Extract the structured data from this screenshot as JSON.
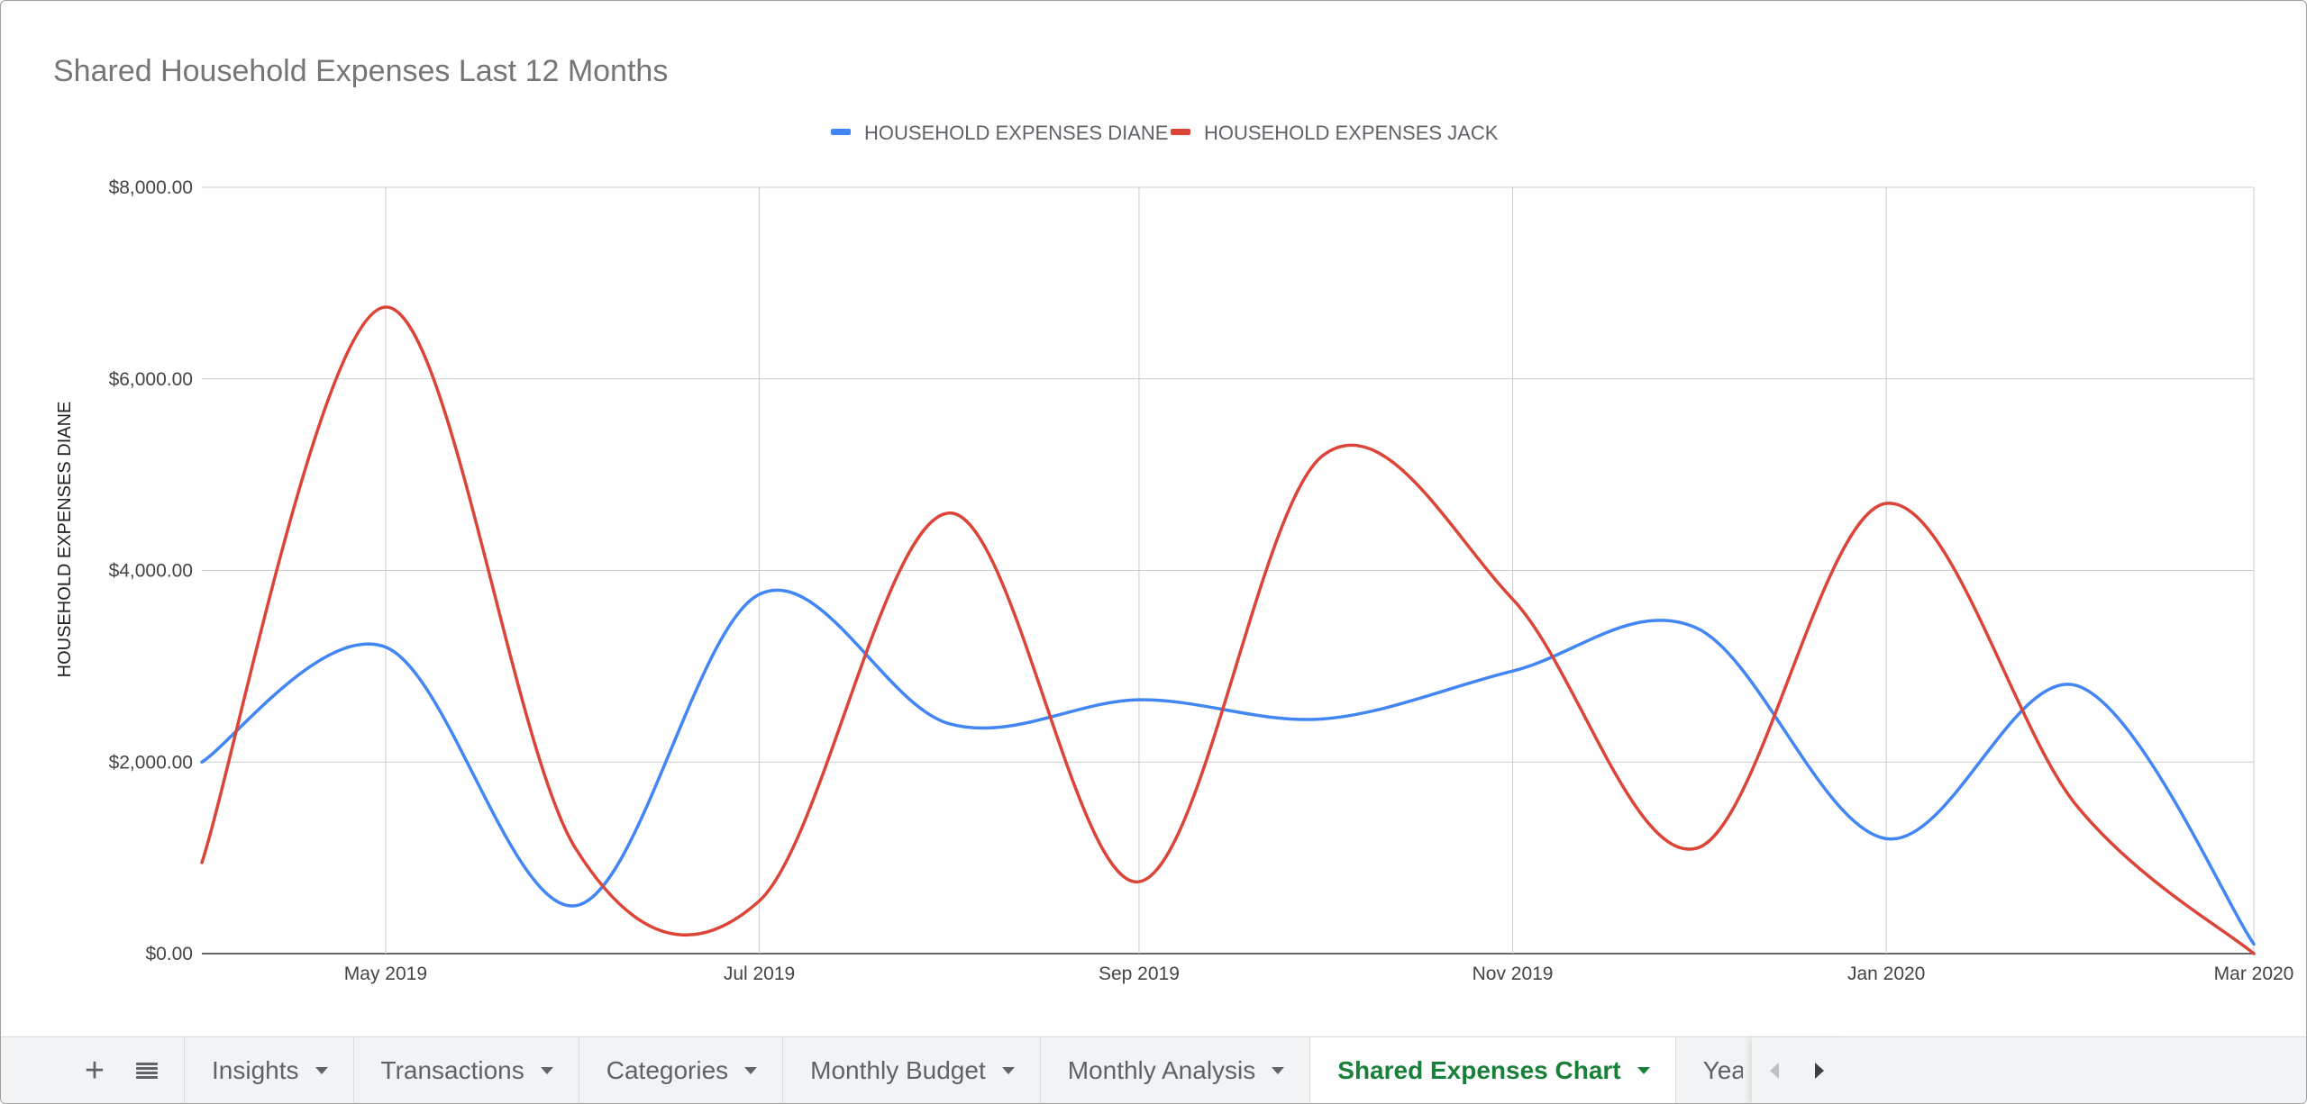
{
  "chart_data": {
    "type": "line",
    "title": "Shared Household Expenses Last 12 Months",
    "ylabel": "HOUSEHOLD EXPENSES DIANE",
    "xlabel": "",
    "ylim": [
      0,
      8000
    ],
    "yticks": [
      0,
      2000,
      4000,
      6000,
      8000
    ],
    "ytick_labels": [
      "$0.00",
      "$2,000.00",
      "$4,000.00",
      "$6,000.00",
      "$8,000.00"
    ],
    "xlim": [
      "2019-04-01",
      "2020-03-01"
    ],
    "xticks": [
      "2019-05-01",
      "2019-07-01",
      "2019-09-01",
      "2019-11-01",
      "2020-01-01",
      "2020-03-01"
    ],
    "xtick_labels": [
      "May 2019",
      "Jul 2019",
      "Sep 2019",
      "Nov 2019",
      "Jan 2020",
      "Mar 2020"
    ],
    "x": [
      "2019-04-01",
      "2019-05-01",
      "2019-06-01",
      "2019-07-01",
      "2019-08-01",
      "2019-09-01",
      "2019-10-01",
      "2019-11-01",
      "2019-12-01",
      "2020-01-01",
      "2020-02-01",
      "2020-03-01"
    ],
    "series": [
      {
        "name": "HOUSEHOLD EXPENSES DIANE",
        "color": "#4285f4",
        "values": [
          2000,
          3200,
          500,
          3750,
          2400,
          2650,
          2450,
          2950,
          3400,
          1200,
          2800,
          100
        ]
      },
      {
        "name": "HOUSEHOLD EXPENSES JACK",
        "color": "#db4437",
        "values": [
          950,
          6750,
          1100,
          550,
          4600,
          750,
          5200,
          3700,
          1100,
          4700,
          1550,
          0
        ]
      }
    ],
    "legend_position": "top",
    "grid": true,
    "curve": "smooth"
  },
  "sheet_tabs": {
    "add_icon": "plus-icon",
    "all_sheets_icon": "list-icon",
    "tabs": [
      {
        "label": "Insights",
        "active": false
      },
      {
        "label": "Transactions",
        "active": false
      },
      {
        "label": "Categories",
        "active": false
      },
      {
        "label": "Monthly Budget",
        "active": false
      },
      {
        "label": "Monthly Analysis",
        "active": false
      },
      {
        "label": "Shared Expenses Chart",
        "active": true
      },
      {
        "label": "Yea",
        "active": false
      }
    ],
    "active_color": "#188038",
    "scroll_left_icon": "scroll-left-icon",
    "scroll_right_icon": "scroll-right-icon"
  }
}
